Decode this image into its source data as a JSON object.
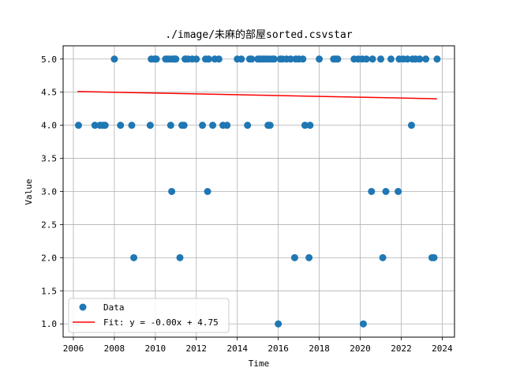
{
  "chart_data": {
    "type": "scatter",
    "title": "./image/未麻的部屋sorted.csvstar",
    "xlabel": "Time",
    "ylabel": "Value",
    "xlim": [
      2005.5,
      2024.6
    ],
    "ylim": [
      0.8,
      5.2
    ],
    "xticks": [
      2006,
      2008,
      2010,
      2012,
      2014,
      2016,
      2018,
      2020,
      2022,
      2024
    ],
    "yticks": [
      1.0,
      1.5,
      2.0,
      2.5,
      3.0,
      3.5,
      4.0,
      4.5,
      5.0
    ],
    "grid": true,
    "legend_position": "lower-left",
    "series": [
      {
        "name": "Data",
        "kind": "scatter",
        "color": "#1f77b4",
        "x": [
          2006.25,
          2007.05,
          2007.3,
          2007.45,
          2007.55,
          2008.0,
          2008.3,
          2008.85,
          2008.95,
          2009.75,
          2009.8,
          2009.95,
          2010.05,
          2010.5,
          2010.6,
          2010.7,
          2010.75,
          2010.8,
          2010.85,
          2010.9,
          2010.95,
          2011.0,
          2011.2,
          2011.3,
          2011.4,
          2011.45,
          2011.5,
          2011.6,
          2011.8,
          2012.0,
          2012.3,
          2012.45,
          2012.55,
          2012.6,
          2012.8,
          2012.9,
          2013.1,
          2013.3,
          2013.5,
          2014.0,
          2014.2,
          2014.5,
          2014.6,
          2014.7,
          2015.0,
          2015.1,
          2015.2,
          2015.3,
          2015.4,
          2015.5,
          2015.55,
          2015.6,
          2015.7,
          2015.8,
          2016.0,
          2016.1,
          2016.2,
          2016.4,
          2016.6,
          2016.8,
          2016.85,
          2017.0,
          2017.2,
          2017.3,
          2017.5,
          2017.55,
          2018.0,
          2018.7,
          2018.8,
          2018.9,
          2019.7,
          2019.9,
          2020.1,
          2020.15,
          2020.3,
          2020.55,
          2020.6,
          2021.0,
          2021.1,
          2021.25,
          2021.5,
          2021.85,
          2021.9,
          2022.1,
          2022.3,
          2022.5,
          2022.55,
          2022.7,
          2022.9,
          2023.2,
          2023.5,
          2023.6,
          2023.75
        ],
        "y": [
          4,
          4,
          4,
          4,
          4,
          5,
          4,
          4,
          2,
          4,
          5,
          5,
          5,
          5,
          5,
          5,
          4,
          3,
          5,
          5,
          5,
          5,
          2,
          4,
          4,
          5,
          5,
          5,
          5,
          5,
          4,
          5,
          3,
          5,
          4,
          5,
          5,
          4,
          4,
          5,
          5,
          4,
          5,
          5,
          5,
          5,
          5,
          5,
          5,
          4,
          5,
          4,
          5,
          5,
          1,
          5,
          5,
          5,
          5,
          2,
          5,
          5,
          5,
          4,
          2,
          4,
          5,
          5,
          5,
          5,
          5,
          5,
          5,
          1,
          5,
          3,
          5,
          5,
          2,
          3,
          5,
          3,
          5,
          5,
          5,
          4,
          5,
          5,
          5,
          5,
          2,
          2,
          5
        ]
      },
      {
        "name": "Fit: y = -0.00x + 4.75",
        "kind": "line",
        "color": "#ff0000",
        "x": [
          2006.2,
          2023.75
        ],
        "y": [
          4.51,
          4.4
        ]
      }
    ]
  }
}
